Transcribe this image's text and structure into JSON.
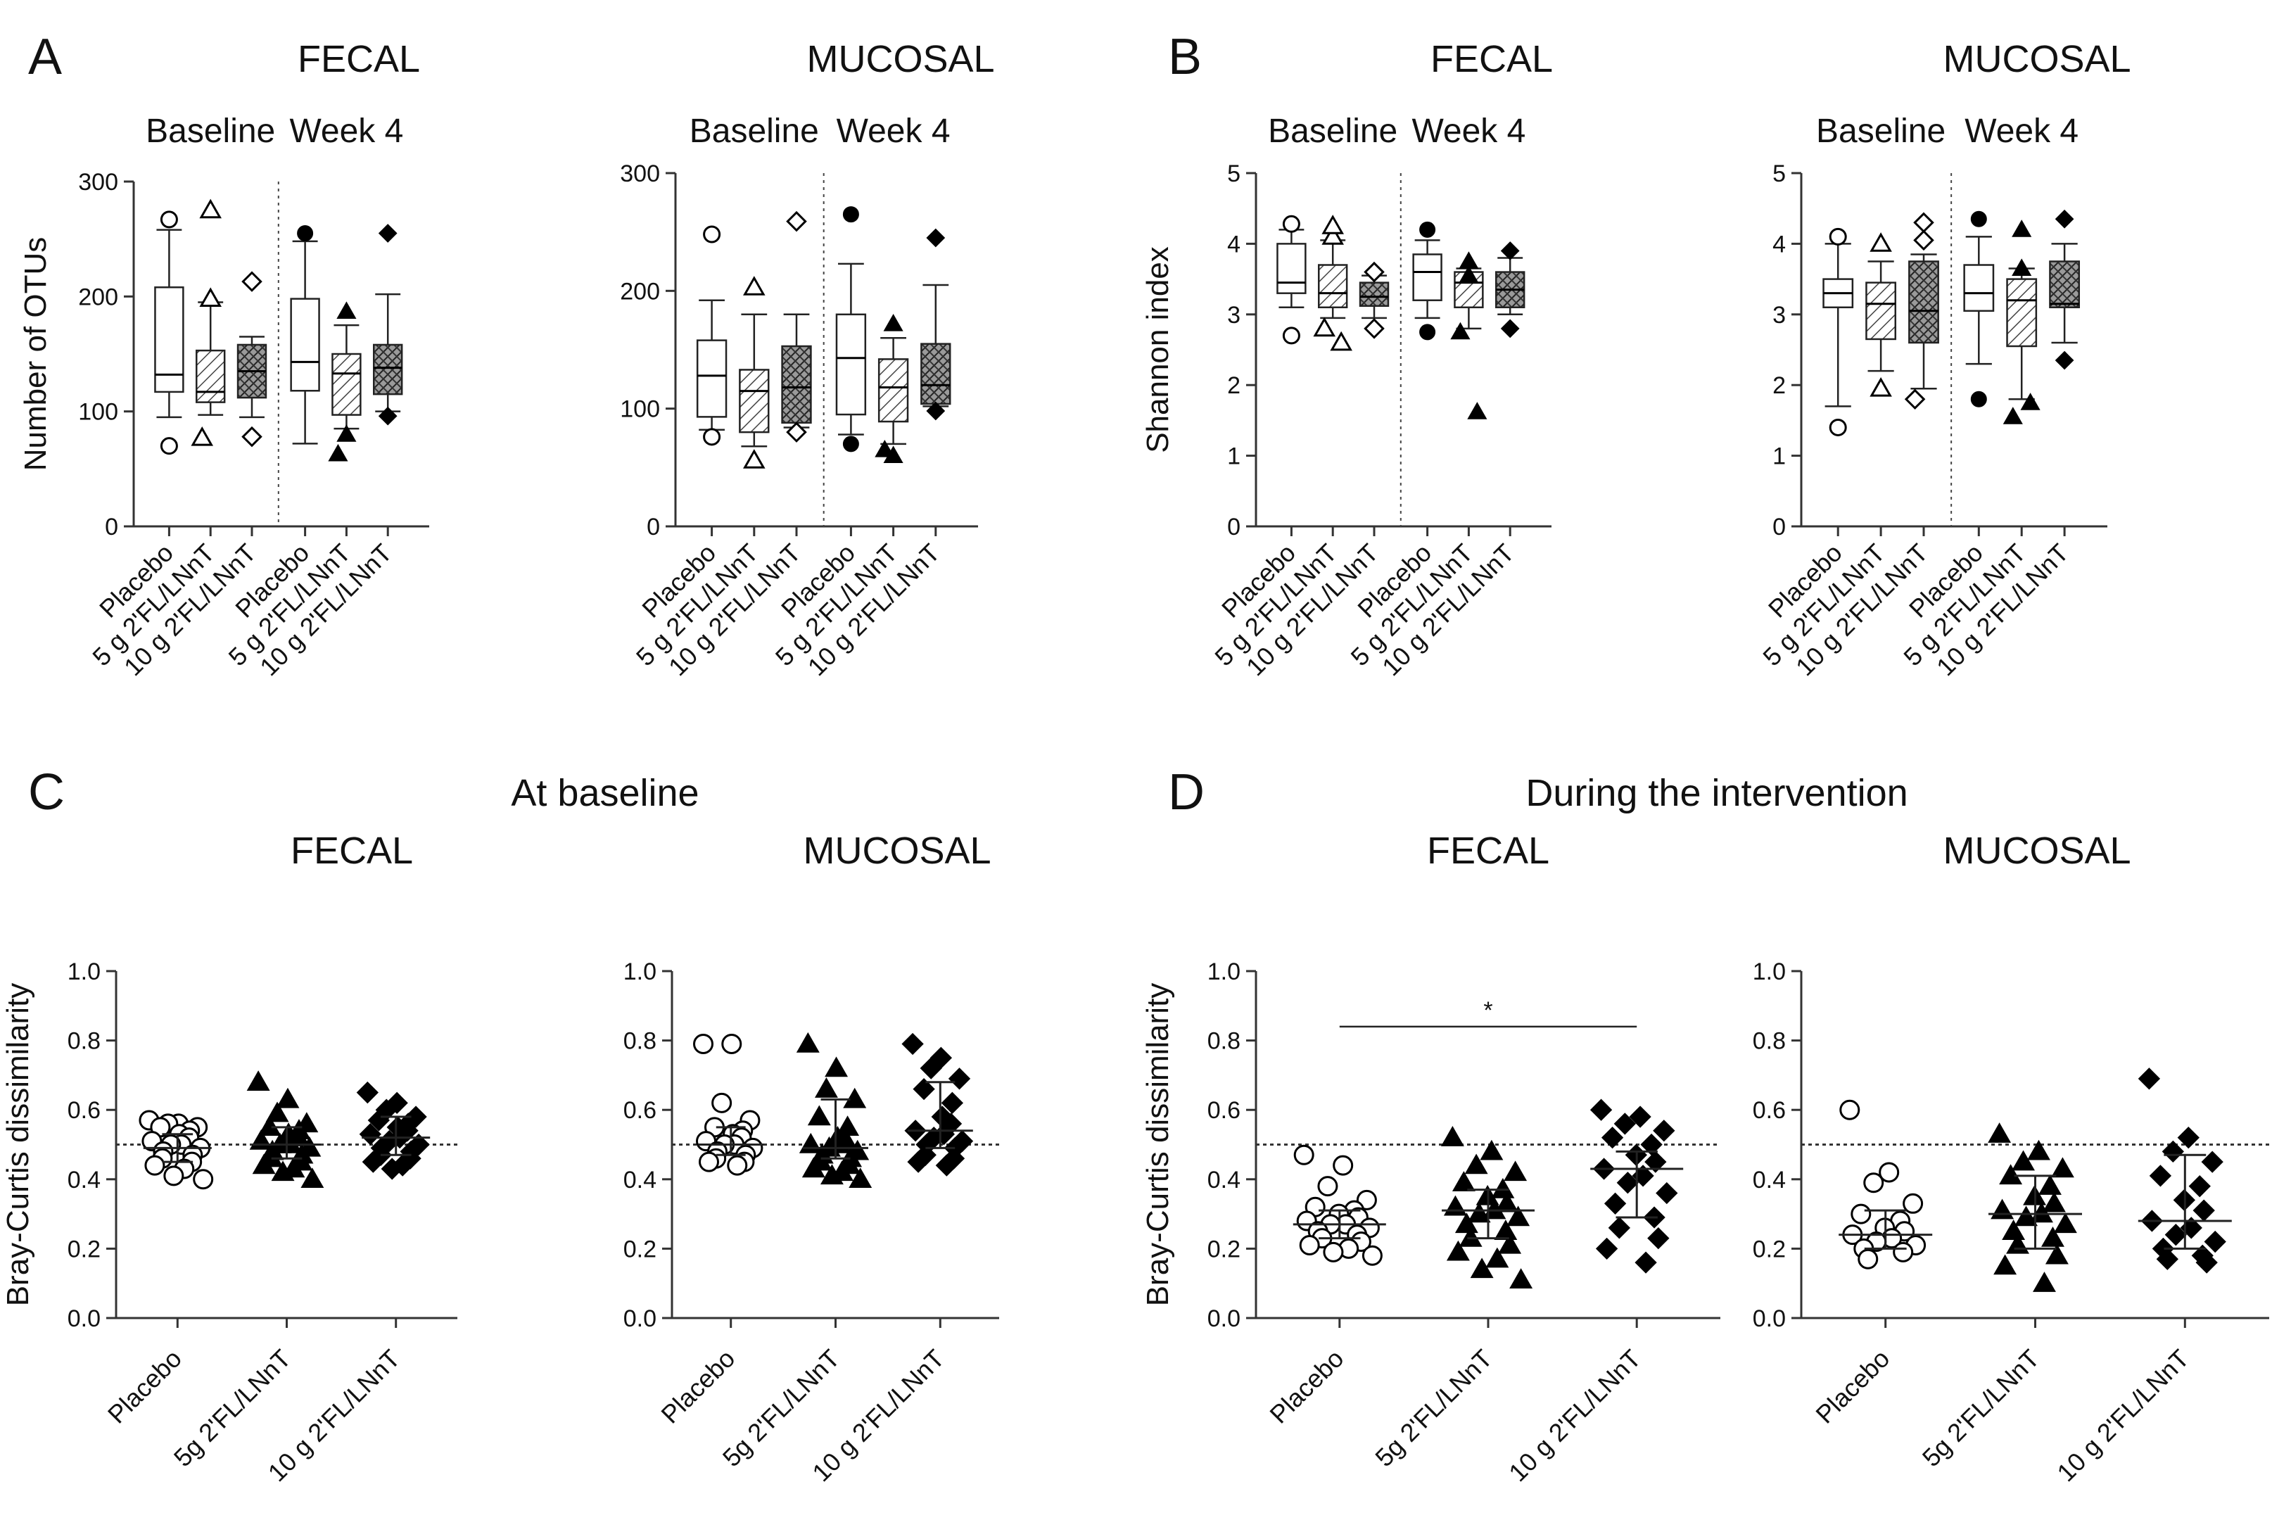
{
  "panels": [
    {
      "letter": "A",
      "title": ""
    },
    {
      "letter": "B",
      "title": ""
    },
    {
      "letter": "C",
      "title": "At baseline"
    },
    {
      "letter": "D",
      "title": "During the intervention"
    }
  ],
  "significance_marker": "*",
  "chart_data": [
    {
      "type": "box",
      "panel": "A",
      "title": "FECAL",
      "ylabel": "Number of OTUs",
      "ylim": [
        0,
        300
      ],
      "yticks": [
        "0",
        "100",
        "200",
        "300"
      ],
      "periods": [
        "Baseline",
        "Week 4"
      ],
      "categories": [
        "Placebo",
        "5 g 2'FL/LNnT",
        "10 g 2'FL/LNnT",
        "Placebo",
        "5 g 2'FL/LNnT",
        "10 g 2'FL/LNnT"
      ],
      "boxes": [
        {
          "whisker_low": 95,
          "q1": 117,
          "median": 132,
          "q3": 208,
          "whisker_high": 258,
          "outliers": [
            267,
            70
          ]
        },
        {
          "whisker_low": 97,
          "q1": 108,
          "median": 117,
          "q3": 153,
          "whisker_high": 195,
          "outliers": [
            275,
            198,
            77
          ]
        },
        {
          "whisker_low": 95,
          "q1": 112,
          "median": 135,
          "q3": 158,
          "whisker_high": 165,
          "outliers": [
            213,
            78
          ]
        },
        {
          "whisker_low": 72,
          "q1": 118,
          "median": 143,
          "q3": 198,
          "whisker_high": 248,
          "outliers": [
            255
          ]
        },
        {
          "whisker_low": 85,
          "q1": 97,
          "median": 133,
          "q3": 150,
          "whisker_high": 175,
          "outliers": [
            187,
            80,
            63
          ]
        },
        {
          "whisker_low": 100,
          "q1": 115,
          "median": 138,
          "q3": 158,
          "whisker_high": 202,
          "outliers": [
            255,
            96
          ]
        }
      ]
    },
    {
      "type": "box",
      "panel": "A",
      "title": "MUCOSAL",
      "ylabel": "",
      "ylim": [
        0,
        300
      ],
      "yticks": [
        "0",
        "100",
        "200",
        "300"
      ],
      "periods": [
        "Baseline",
        "Week 4"
      ],
      "categories": [
        "Placebo",
        "5 g 2'FL/LNnT",
        "10 g 2'FL/LNnT",
        "Placebo",
        "5 g 2'FL/LNnT",
        "10 g 2'FL/LNnT"
      ],
      "boxes": [
        {
          "whisker_low": 82,
          "q1": 93,
          "median": 128,
          "q3": 158,
          "whisker_high": 192,
          "outliers": [
            248,
            76
          ]
        },
        {
          "whisker_low": 68,
          "q1": 80,
          "median": 115,
          "q3": 133,
          "whisker_high": 180,
          "outliers": [
            203,
            56
          ]
        },
        {
          "whisker_low": 84,
          "q1": 88,
          "median": 118,
          "q3": 153,
          "whisker_high": 180,
          "outliers": [
            259,
            80
          ]
        },
        {
          "whisker_low": 78,
          "q1": 95,
          "median": 143,
          "q3": 180,
          "whisker_high": 223,
          "outliers": [
            265,
            70
          ]
        },
        {
          "whisker_low": 70,
          "q1": 89,
          "median": 118,
          "q3": 142,
          "whisker_high": 160,
          "outliers": [
            172,
            60,
            65
          ]
        },
        {
          "whisker_low": 102,
          "q1": 104,
          "median": 120,
          "q3": 155,
          "whisker_high": 205,
          "outliers": [
            245,
            98
          ]
        }
      ]
    },
    {
      "type": "box",
      "panel": "B",
      "title": "FECAL",
      "ylabel": "Shannon index",
      "ylim": [
        0,
        5
      ],
      "yticks": [
        "0",
        "1",
        "2",
        "3",
        "4",
        "5"
      ],
      "periods": [
        "Baseline",
        "Week 4"
      ],
      "categories": [
        "Placebo",
        "5 g 2'FL/LNnT",
        "10 g 2'FL/LNnT",
        "Placebo",
        "5 g 2'FL/LNnT",
        "10 g 2'FL/LNnT"
      ],
      "boxes": [
        {
          "whisker_low": 3.1,
          "q1": 3.3,
          "median": 3.45,
          "q3": 4.0,
          "whisker_high": 4.2,
          "outliers": [
            4.28,
            2.7
          ]
        },
        {
          "whisker_low": 2.95,
          "q1": 3.1,
          "median": 3.3,
          "q3": 3.7,
          "whisker_high": 4.05,
          "outliers": [
            4.1,
            4.25,
            2.8,
            2.6
          ]
        },
        {
          "whisker_low": 2.95,
          "q1": 3.12,
          "median": 3.25,
          "q3": 3.45,
          "whisker_high": 3.55,
          "outliers": [
            3.6,
            2.8
          ]
        },
        {
          "whisker_low": 2.95,
          "q1": 3.2,
          "median": 3.6,
          "q3": 3.85,
          "whisker_high": 4.05,
          "outliers": [
            4.2,
            2.75
          ]
        },
        {
          "whisker_low": 2.8,
          "q1": 3.1,
          "median": 3.45,
          "q3": 3.6,
          "whisker_high": 3.65,
          "outliers": [
            3.55,
            3.75,
            2.75,
            1.62
          ]
        },
        {
          "whisker_low": 3.0,
          "q1": 3.1,
          "median": 3.35,
          "q3": 3.6,
          "whisker_high": 3.8,
          "outliers": [
            3.9,
            2.8
          ]
        }
      ]
    },
    {
      "type": "box",
      "panel": "B",
      "title": "MUCOSAL",
      "ylabel": "",
      "ylim": [
        0,
        5
      ],
      "yticks": [
        "0",
        "1",
        "2",
        "3",
        "4",
        "5"
      ],
      "periods": [
        "Baseline",
        "Week 4"
      ],
      "categories": [
        "Placebo",
        "5 g 2'FL/LNnT",
        "10 g 2'FL/LNnT",
        "Placebo",
        "5 g 2'FL/LNnT",
        "10 g 2'FL/LNnT"
      ],
      "boxes": [
        {
          "whisker_low": 1.7,
          "q1": 3.1,
          "median": 3.3,
          "q3": 3.5,
          "whisker_high": 4.0,
          "outliers": [
            4.1,
            1.4
          ]
        },
        {
          "whisker_low": 2.2,
          "q1": 2.65,
          "median": 3.15,
          "q3": 3.45,
          "whisker_high": 3.75,
          "outliers": [
            4.0,
            1.95
          ]
        },
        {
          "whisker_low": 1.95,
          "q1": 2.6,
          "median": 3.05,
          "q3": 3.75,
          "whisker_high": 3.85,
          "outliers": [
            4.05,
            4.3,
            1.8
          ]
        },
        {
          "whisker_low": 2.3,
          "q1": 3.05,
          "median": 3.3,
          "q3": 3.7,
          "whisker_high": 4.1,
          "outliers": [
            4.35,
            1.8
          ]
        },
        {
          "whisker_low": 1.8,
          "q1": 2.55,
          "median": 3.2,
          "q3": 3.5,
          "whisker_high": 3.65,
          "outliers": [
            4.2,
            3.65,
            1.55,
            1.75
          ]
        },
        {
          "whisker_low": 2.6,
          "q1": 3.1,
          "median": 3.15,
          "q3": 3.75,
          "whisker_high": 4.0,
          "outliers": [
            4.35,
            2.35
          ]
        }
      ]
    },
    {
      "type": "scatter",
      "panel": "C",
      "title": "FECAL",
      "ylabel": "Bray-Curtis dissimilarity",
      "ylim": [
        0,
        1
      ],
      "yticks": [
        "0.0",
        "0.2",
        "0.4",
        "0.6",
        "0.8",
        "1.0"
      ],
      "reference_line": 0.5,
      "categories": [
        "Placebo",
        "5g 2'FL/LNnT",
        "10 g 2'FL/LNnT"
      ],
      "groups": [
        {
          "median": 0.49,
          "q1": 0.45,
          "q3": 0.53,
          "values": [
            0.57,
            0.56,
            0.56,
            0.55,
            0.55,
            0.54,
            0.53,
            0.52,
            0.51,
            0.5,
            0.5,
            0.49,
            0.48,
            0.47,
            0.46,
            0.45,
            0.44,
            0.43,
            0.41,
            0.4
          ]
        },
        {
          "median": 0.5,
          "q1": 0.46,
          "q3": 0.55,
          "values": [
            0.68,
            0.63,
            0.59,
            0.56,
            0.55,
            0.54,
            0.53,
            0.52,
            0.51,
            0.5,
            0.5,
            0.49,
            0.48,
            0.47,
            0.46,
            0.45,
            0.44,
            0.43,
            0.42,
            0.4
          ]
        },
        {
          "median": 0.52,
          "q1": 0.47,
          "q3": 0.58,
          "values": [
            0.65,
            0.62,
            0.6,
            0.58,
            0.57,
            0.56,
            0.55,
            0.54,
            0.53,
            0.52,
            0.51,
            0.5,
            0.49,
            0.48,
            0.47,
            0.46,
            0.45,
            0.44,
            0.43
          ]
        }
      ]
    },
    {
      "type": "scatter",
      "panel": "C",
      "title": "MUCOSAL",
      "ylabel": "",
      "ylim": [
        0,
        1
      ],
      "yticks": [
        "0.0",
        "0.2",
        "0.4",
        "0.6",
        "0.8",
        "1.0"
      ],
      "reference_line": 0.5,
      "categories": [
        "Placebo",
        "5g 2'FL/LNnT",
        "10 g 2'FL/LNnT"
      ],
      "groups": [
        {
          "median": 0.5,
          "q1": 0.47,
          "q3": 0.55,
          "values": [
            0.79,
            0.79,
            0.62,
            0.57,
            0.55,
            0.54,
            0.53,
            0.52,
            0.51,
            0.5,
            0.5,
            0.49,
            0.48,
            0.47,
            0.46,
            0.45,
            0.45,
            0.44
          ]
        },
        {
          "median": 0.49,
          "q1": 0.46,
          "q3": 0.63,
          "values": [
            0.79,
            0.72,
            0.66,
            0.63,
            0.58,
            0.55,
            0.52,
            0.51,
            0.5,
            0.5,
            0.49,
            0.48,
            0.47,
            0.46,
            0.45,
            0.44,
            0.43,
            0.42,
            0.41,
            0.4
          ]
        },
        {
          "median": 0.54,
          "q1": 0.49,
          "q3": 0.68,
          "values": [
            0.79,
            0.75,
            0.72,
            0.69,
            0.66,
            0.62,
            0.58,
            0.56,
            0.54,
            0.53,
            0.52,
            0.51,
            0.5,
            0.49,
            0.47,
            0.46,
            0.45,
            0.44
          ]
        }
      ]
    },
    {
      "type": "scatter",
      "panel": "D",
      "title": "FECAL",
      "ylabel": "Bray-Curtis dissimilarity",
      "ylim": [
        0,
        1
      ],
      "yticks": [
        "0.0",
        "0.2",
        "0.4",
        "0.6",
        "0.8",
        "1.0"
      ],
      "reference_line": 0.5,
      "significance": {
        "from": 0,
        "to": 2,
        "y": 0.84
      },
      "categories": [
        "Placebo",
        "5g 2'FL/LNnT",
        "10 g 2'FL/LNnT"
      ],
      "groups": [
        {
          "median": 0.27,
          "q1": 0.23,
          "q3": 0.31,
          "values": [
            0.47,
            0.44,
            0.38,
            0.34,
            0.32,
            0.31,
            0.3,
            0.29,
            0.28,
            0.27,
            0.27,
            0.26,
            0.25,
            0.24,
            0.23,
            0.22,
            0.21,
            0.2,
            0.19,
            0.18
          ]
        },
        {
          "median": 0.31,
          "q1": 0.23,
          "q3": 0.37,
          "values": [
            0.52,
            0.48,
            0.44,
            0.42,
            0.39,
            0.37,
            0.35,
            0.33,
            0.32,
            0.31,
            0.3,
            0.29,
            0.27,
            0.25,
            0.23,
            0.21,
            0.19,
            0.17,
            0.14,
            0.11
          ]
        },
        {
          "median": 0.43,
          "q1": 0.29,
          "q3": 0.48,
          "values": [
            0.6,
            0.58,
            0.56,
            0.54,
            0.52,
            0.5,
            0.47,
            0.45,
            0.43,
            0.41,
            0.39,
            0.36,
            0.33,
            0.29,
            0.26,
            0.23,
            0.2,
            0.16
          ]
        }
      ]
    },
    {
      "type": "scatter",
      "panel": "D",
      "title": "MUCOSAL",
      "ylabel": "",
      "ylim": [
        0,
        1
      ],
      "yticks": [
        "0.0",
        "0.2",
        "0.4",
        "0.6",
        "0.8",
        "1.0"
      ],
      "reference_line": 0.5,
      "categories": [
        "Placebo",
        "5g 2'FL/LNnT",
        "10 g 2'FL/LNnT"
      ],
      "groups": [
        {
          "median": 0.24,
          "q1": 0.2,
          "q3": 0.31,
          "values": [
            0.6,
            0.42,
            0.39,
            0.33,
            0.3,
            0.28,
            0.26,
            0.25,
            0.24,
            0.23,
            0.22,
            0.21,
            0.2,
            0.19,
            0.17
          ]
        },
        {
          "median": 0.3,
          "q1": 0.2,
          "q3": 0.41,
          "values": [
            0.53,
            0.48,
            0.45,
            0.43,
            0.41,
            0.38,
            0.35,
            0.33,
            0.31,
            0.3,
            0.29,
            0.27,
            0.25,
            0.23,
            0.21,
            0.18,
            0.15,
            0.1
          ]
        },
        {
          "median": 0.28,
          "q1": 0.2,
          "q3": 0.47,
          "values": [
            0.69,
            0.52,
            0.48,
            0.45,
            0.41,
            0.38,
            0.34,
            0.31,
            0.28,
            0.26,
            0.24,
            0.22,
            0.2,
            0.18,
            0.17,
            0.16
          ]
        }
      ]
    }
  ]
}
